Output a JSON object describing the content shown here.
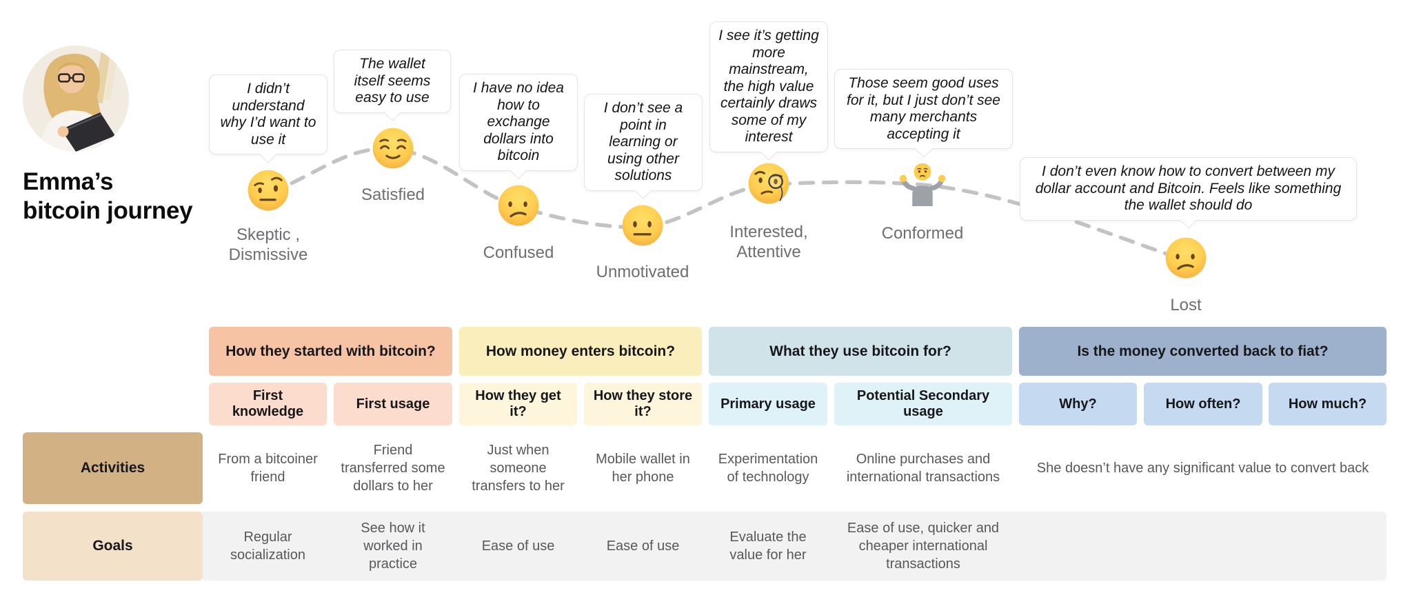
{
  "persona": {
    "title": "Emma’s\nbitcoin journey",
    "avatar": "woman-writing-in-notebook-photo"
  },
  "journey": {
    "stages": [
      {
        "label": "Skeptic ,\nDismissive",
        "emoji": "face-with-raised-eyebrow",
        "quote": "I didn’t understand why I’d want to use it"
      },
      {
        "label": "Satisfied",
        "emoji": "relieved-face",
        "quote": "The wallet itself seems easy to use"
      },
      {
        "label": "Confused",
        "emoji": "confused-face",
        "quote": "I have no idea how to exchange dollars into bitcoin"
      },
      {
        "label": "Unmotivated",
        "emoji": "neutral-face",
        "quote": "I don’t see a point in learning or using other solutions"
      },
      {
        "label": "Interested,\nAttentive",
        "emoji": "face-with-monocle",
        "quote": "I see it’s getting more mainstream, the high value certainly draws some of my interest"
      },
      {
        "label": "Conformed",
        "emoji": "person-shrugging",
        "quote": "Those seem good uses for it, but I just don’t see many merchants accepting it"
      },
      {
        "label": "Lost",
        "emoji": "confused-face",
        "quote": "I don’t even know how to convert between my dollar account and Bitcoin. Feels like something the wallet should do"
      }
    ]
  },
  "table": {
    "groups": [
      {
        "label": "How they started with bitcoin?",
        "color": "#f6c3a5",
        "sub_color": "#fbdccd",
        "span": 2
      },
      {
        "label": "How money enters bitcoin?",
        "color": "#faeebc",
        "sub_color": "#fdf6dd",
        "span": 2
      },
      {
        "label": "What they use bitcoin for?",
        "color": "#cfe3e8",
        "sub_color": "#dff2f7",
        "span": 2
      },
      {
        "label": "Is the money converted back to fiat?",
        "color": "#9db1cc",
        "sub_color": "#c5daf1",
        "span": 3
      }
    ],
    "columns": [
      "First knowledge",
      "First usage",
      "How they get it?",
      "How they store it?",
      "Primary usage",
      "Potential Secondary usage",
      "Why?",
      "How often?",
      "How much?"
    ],
    "rows": [
      {
        "label": "Activities",
        "label_color": "#d2b184",
        "cells": [
          "From a bitcoiner friend",
          "Friend transferred some dollars to her",
          "Just when someone transfers to her",
          "Mobile wallet in her phone",
          "Experimentation of technology",
          "Online purchases and international transactions",
          {
            "text": "She doesn’t have any significant value to convert back",
            "span": 3
          }
        ]
      },
      {
        "label": "Goals",
        "label_color": "#f3e1c9",
        "band_color": "#f2f2f3",
        "cells": [
          "Regular socialization",
          "See how it worked in practice",
          "Ease of use",
          "Ease of use",
          "Evaluate the value for her",
          "Ease of use, quicker and cheaper international transactions",
          "",
          "",
          ""
        ]
      }
    ]
  },
  "colors": {
    "dash_line": "#c3c3c3",
    "emoji_yellow": "#ffcb4c",
    "stage_label_gray": "#6d6e71",
    "cell_text_gray": "#57585a"
  }
}
